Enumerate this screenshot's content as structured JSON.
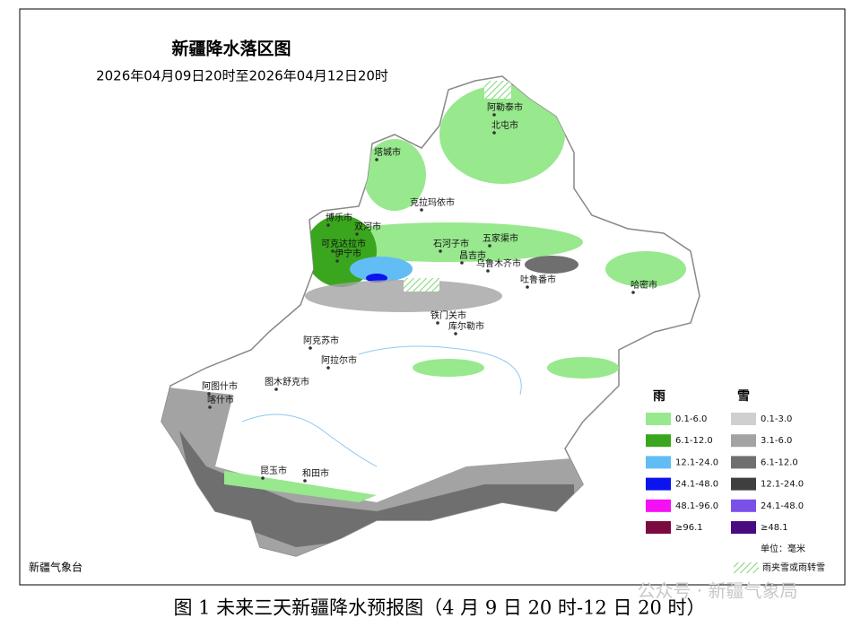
{
  "header": {
    "title": "新疆降水落区图",
    "subtitle": "2026年04月09日20时至2026年04月12日20时"
  },
  "cities": [
    "阿勒泰市",
    "北屯市",
    "塔城市",
    "克拉玛依市",
    "博乐市",
    "双河市",
    "可克达拉市",
    "伊宁市",
    "石河子市",
    "五家渠市",
    "昌吉市",
    "乌鲁木齐市",
    "吐鲁番市",
    "哈密市",
    "铁门关市",
    "库尔勒市",
    "阿克苏市",
    "阿拉尔市",
    "阿图什市",
    "图木舒克市",
    "喀什市",
    "昆玉市",
    "和田市"
  ],
  "legend": {
    "rain": {
      "title": "雨",
      "items": [
        {
          "label": "0.1-6.0",
          "color": "#98e88e"
        },
        {
          "label": "6.1-12.0",
          "color": "#3aa61e"
        },
        {
          "label": "12.1-24.0",
          "color": "#62bdf4"
        },
        {
          "label": "24.1-48.0",
          "color": "#0b13ee"
        },
        {
          "label": "48.1-96.0",
          "color": "#f50ff5"
        },
        {
          "label": "≥96.1",
          "color": "#7b0a41"
        }
      ]
    },
    "snow": {
      "title": "雪",
      "items": [
        {
          "label": "0.1-3.0",
          "color": "#cfcfcf"
        },
        {
          "label": "3.1-6.0",
          "color": "#a3a3a3"
        },
        {
          "label": "6.1-12.0",
          "color": "#6f6f6f"
        },
        {
          "label": "12.1-24.0",
          "color": "#3f3f3f"
        },
        {
          "label": "24.1-48.0",
          "color": "#7b50e8"
        },
        {
          "label": "≥48.1",
          "color": "#4a0a80"
        }
      ]
    },
    "unit": "单位：毫米",
    "hatch_label": "雨夹雪或雨转雪"
  },
  "footer": {
    "source": "新疆气象台",
    "caption": "图 1 未来三天新疆降水预报图（4 月 9 日 20 时-12 日 20 时）",
    "watermark": "公众号 · 新疆气象局"
  }
}
